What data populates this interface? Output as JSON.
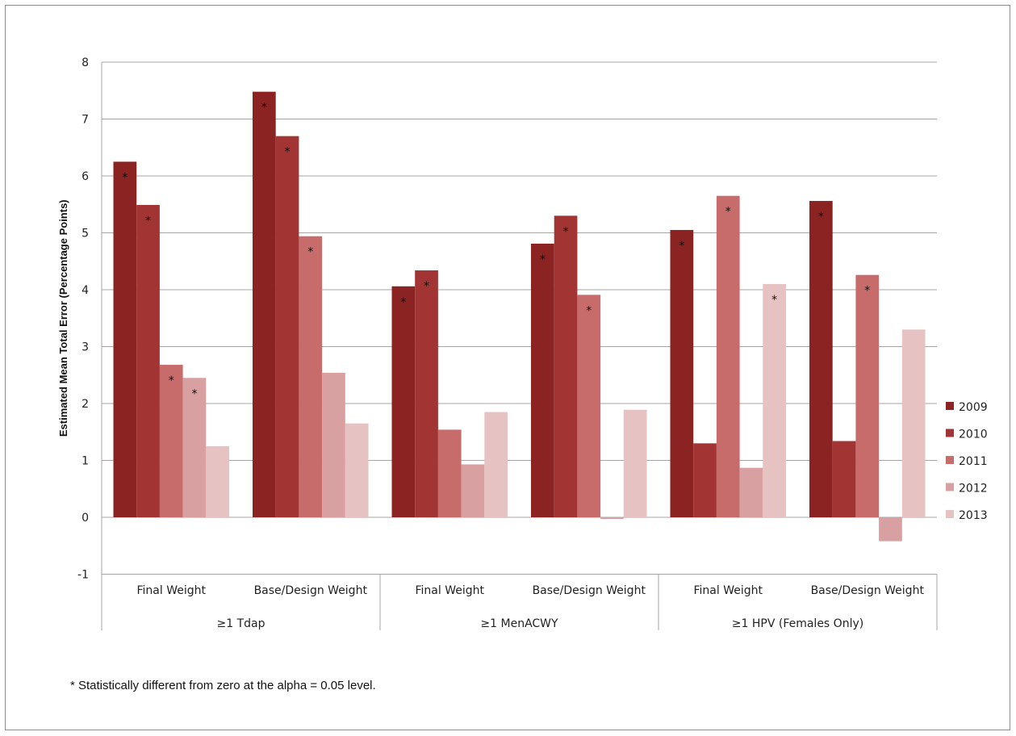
{
  "chart_data": {
    "type": "bar",
    "ylabel": "Estimated Mean Total Error (Percentage Points)",
    "xlabel": "",
    "ylim": [
      -1,
      8
    ],
    "yticks": [
      -1,
      0,
      1,
      2,
      3,
      4,
      5,
      6,
      7,
      8
    ],
    "grid": true,
    "legend_position": "right",
    "groups": [
      {
        "name": "≥1 Tdap",
        "categories": [
          "Final Weight",
          "Base/Design Weight"
        ]
      },
      {
        "name": "≥1 MenACWY",
        "categories": [
          "Final Weight",
          "Base/Design Weight"
        ]
      },
      {
        "name": "≥1 HPV (Females Only)",
        "categories": [
          "Final Weight",
          "Base/Design Weight"
        ]
      }
    ],
    "categories": [
      "Final Weight",
      "Base/Design Weight",
      "Final Weight",
      "Base/Design Weight",
      "Final Weight",
      "Base/Design Weight"
    ],
    "series": [
      {
        "name": "2009",
        "color": "#8b2323",
        "values": [
          6.25,
          7.48,
          4.06,
          4.81,
          5.05,
          5.56
        ],
        "significant": [
          true,
          true,
          true,
          true,
          true,
          true
        ]
      },
      {
        "name": "2010",
        "color": "#a33434",
        "values": [
          5.49,
          6.7,
          4.34,
          5.3,
          1.3,
          1.34
        ],
        "significant": [
          true,
          true,
          true,
          true,
          false,
          false
        ]
      },
      {
        "name": "2011",
        "color": "#c86b6b",
        "values": [
          2.68,
          4.94,
          1.54,
          3.91,
          5.65,
          4.26
        ],
        "significant": [
          true,
          true,
          false,
          true,
          true,
          true
        ]
      },
      {
        "name": "2012",
        "color": "#d8a0a0",
        "values": [
          2.45,
          2.54,
          0.93,
          -0.03,
          0.87,
          -0.42
        ],
        "significant": [
          true,
          false,
          false,
          false,
          false,
          false
        ]
      },
      {
        "name": "2013",
        "color": "#e6c2c2",
        "values": [
          1.25,
          1.65,
          1.85,
          1.89,
          4.1,
          3.3
        ],
        "significant": [
          false,
          false,
          false,
          false,
          true,
          false
        ]
      }
    ],
    "significance_marker": "*"
  },
  "footnote": "* Statistically different from zero at the alpha = 0.05 level."
}
